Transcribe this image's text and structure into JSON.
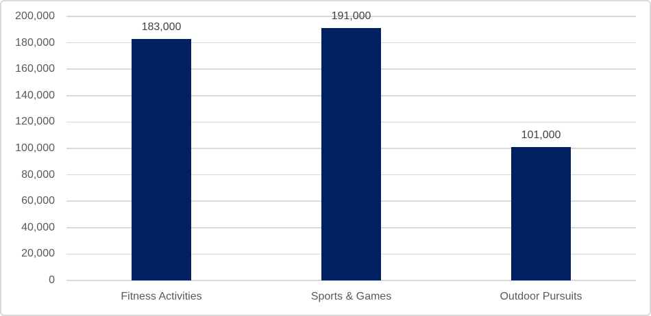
{
  "chart_data": {
    "type": "bar",
    "title": "",
    "xlabel": "",
    "ylabel": "",
    "categories": [
      "Fitness Activities",
      "Sports & Games",
      "Outdoor Pursuits"
    ],
    "values": [
      183000,
      191000,
      101000
    ],
    "data_labels": [
      "183,000",
      "191,000",
      "101,000"
    ],
    "ylim": [
      0,
      200000
    ],
    "y_tick_values": [
      0,
      20000,
      40000,
      60000,
      80000,
      100000,
      120000,
      140000,
      160000,
      180000,
      200000
    ],
    "y_tick_labels": [
      "0",
      "20,000",
      "40,000",
      "60,000",
      "80,000",
      "100,000",
      "120,000",
      "140,000",
      "160,000",
      "180,000",
      "200,000"
    ],
    "grid": true,
    "legend": "none",
    "colors": {
      "bar": "#002060",
      "gridline": "#d9d9d9",
      "border": "#d9d9d9",
      "background": "#ffffff",
      "axis_label": "#595959",
      "data_label": "#404040"
    }
  }
}
